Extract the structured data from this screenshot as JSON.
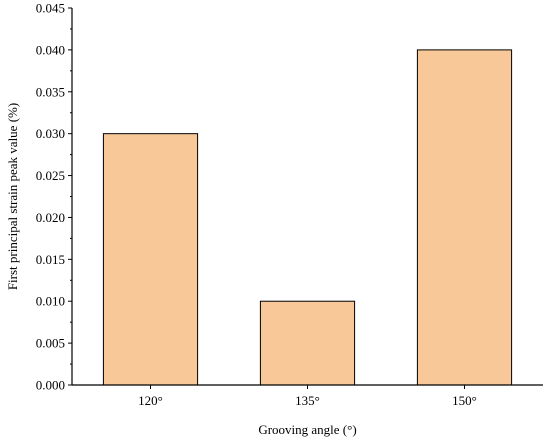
{
  "chart_data": {
    "type": "bar",
    "categories": [
      "120°",
      "135°",
      "150°"
    ],
    "values": [
      0.03,
      0.01,
      0.04
    ],
    "xlabel": "Grooving angle (°)",
    "ylabel": "First principal strain peak value (%)",
    "ylim": [
      0,
      0.045
    ],
    "yticks": [
      "0.000",
      "0.005",
      "0.010",
      "0.015",
      "0.020",
      "0.025",
      "0.030",
      "0.035",
      "0.040",
      "0.045"
    ],
    "bar_color": "#F9C899",
    "bar_edge_color": "#000000",
    "grid": false,
    "legend": "none"
  }
}
